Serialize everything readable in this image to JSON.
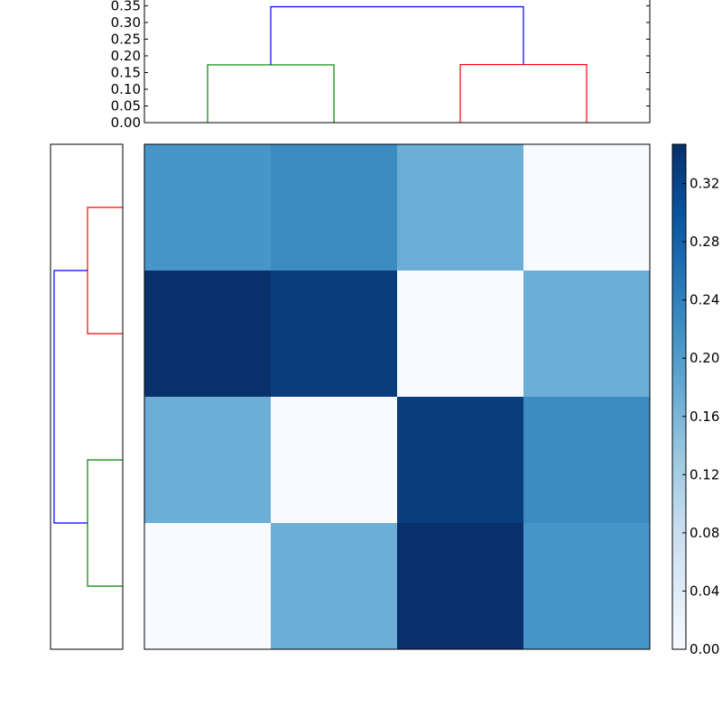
{
  "chart_data": {
    "type": "heatmap",
    "colormap": "Blues",
    "clim": [
      0,
      0.347
    ],
    "matrix": [
      [
        0.21,
        0.225,
        0.173,
        0.0
      ],
      [
        0.347,
        0.33,
        0.0,
        0.173
      ],
      [
        0.173,
        0.0,
        0.33,
        0.225
      ],
      [
        0.0,
        0.173,
        0.347,
        0.21
      ]
    ],
    "colorbar": {
      "ticks": [
        "0.00",
        "0.04",
        "0.08",
        "0.12",
        "0.16",
        "0.20",
        "0.24",
        "0.28",
        "0.32"
      ]
    },
    "top_dendrogram": {
      "ylim": [
        0,
        0.37
      ],
      "yticks": [
        "0.00",
        "0.05",
        "0.10",
        "0.15",
        "0.20",
        "0.25",
        "0.30",
        "0.35"
      ],
      "links": [
        {
          "left": 0,
          "right": 1,
          "height": 0.173,
          "color": "#008000"
        },
        {
          "left": 2,
          "right": 3,
          "height": 0.174,
          "color": "#ff0000"
        },
        {
          "left": 0.5,
          "right": 2.5,
          "height": 0.347,
          "color": "#0000ff"
        }
      ]
    },
    "left_dendrogram": {
      "xlim": [
        0,
        0.365
      ],
      "links": [
        {
          "left": 0,
          "right": 1,
          "height": 0.178,
          "color": "#ff0000"
        },
        {
          "left": 2,
          "right": 3,
          "height": 0.178,
          "color": "#008000"
        },
        {
          "left": 0.5,
          "right": 2.5,
          "height": 0.347,
          "color": "#0000ff"
        }
      ]
    }
  }
}
